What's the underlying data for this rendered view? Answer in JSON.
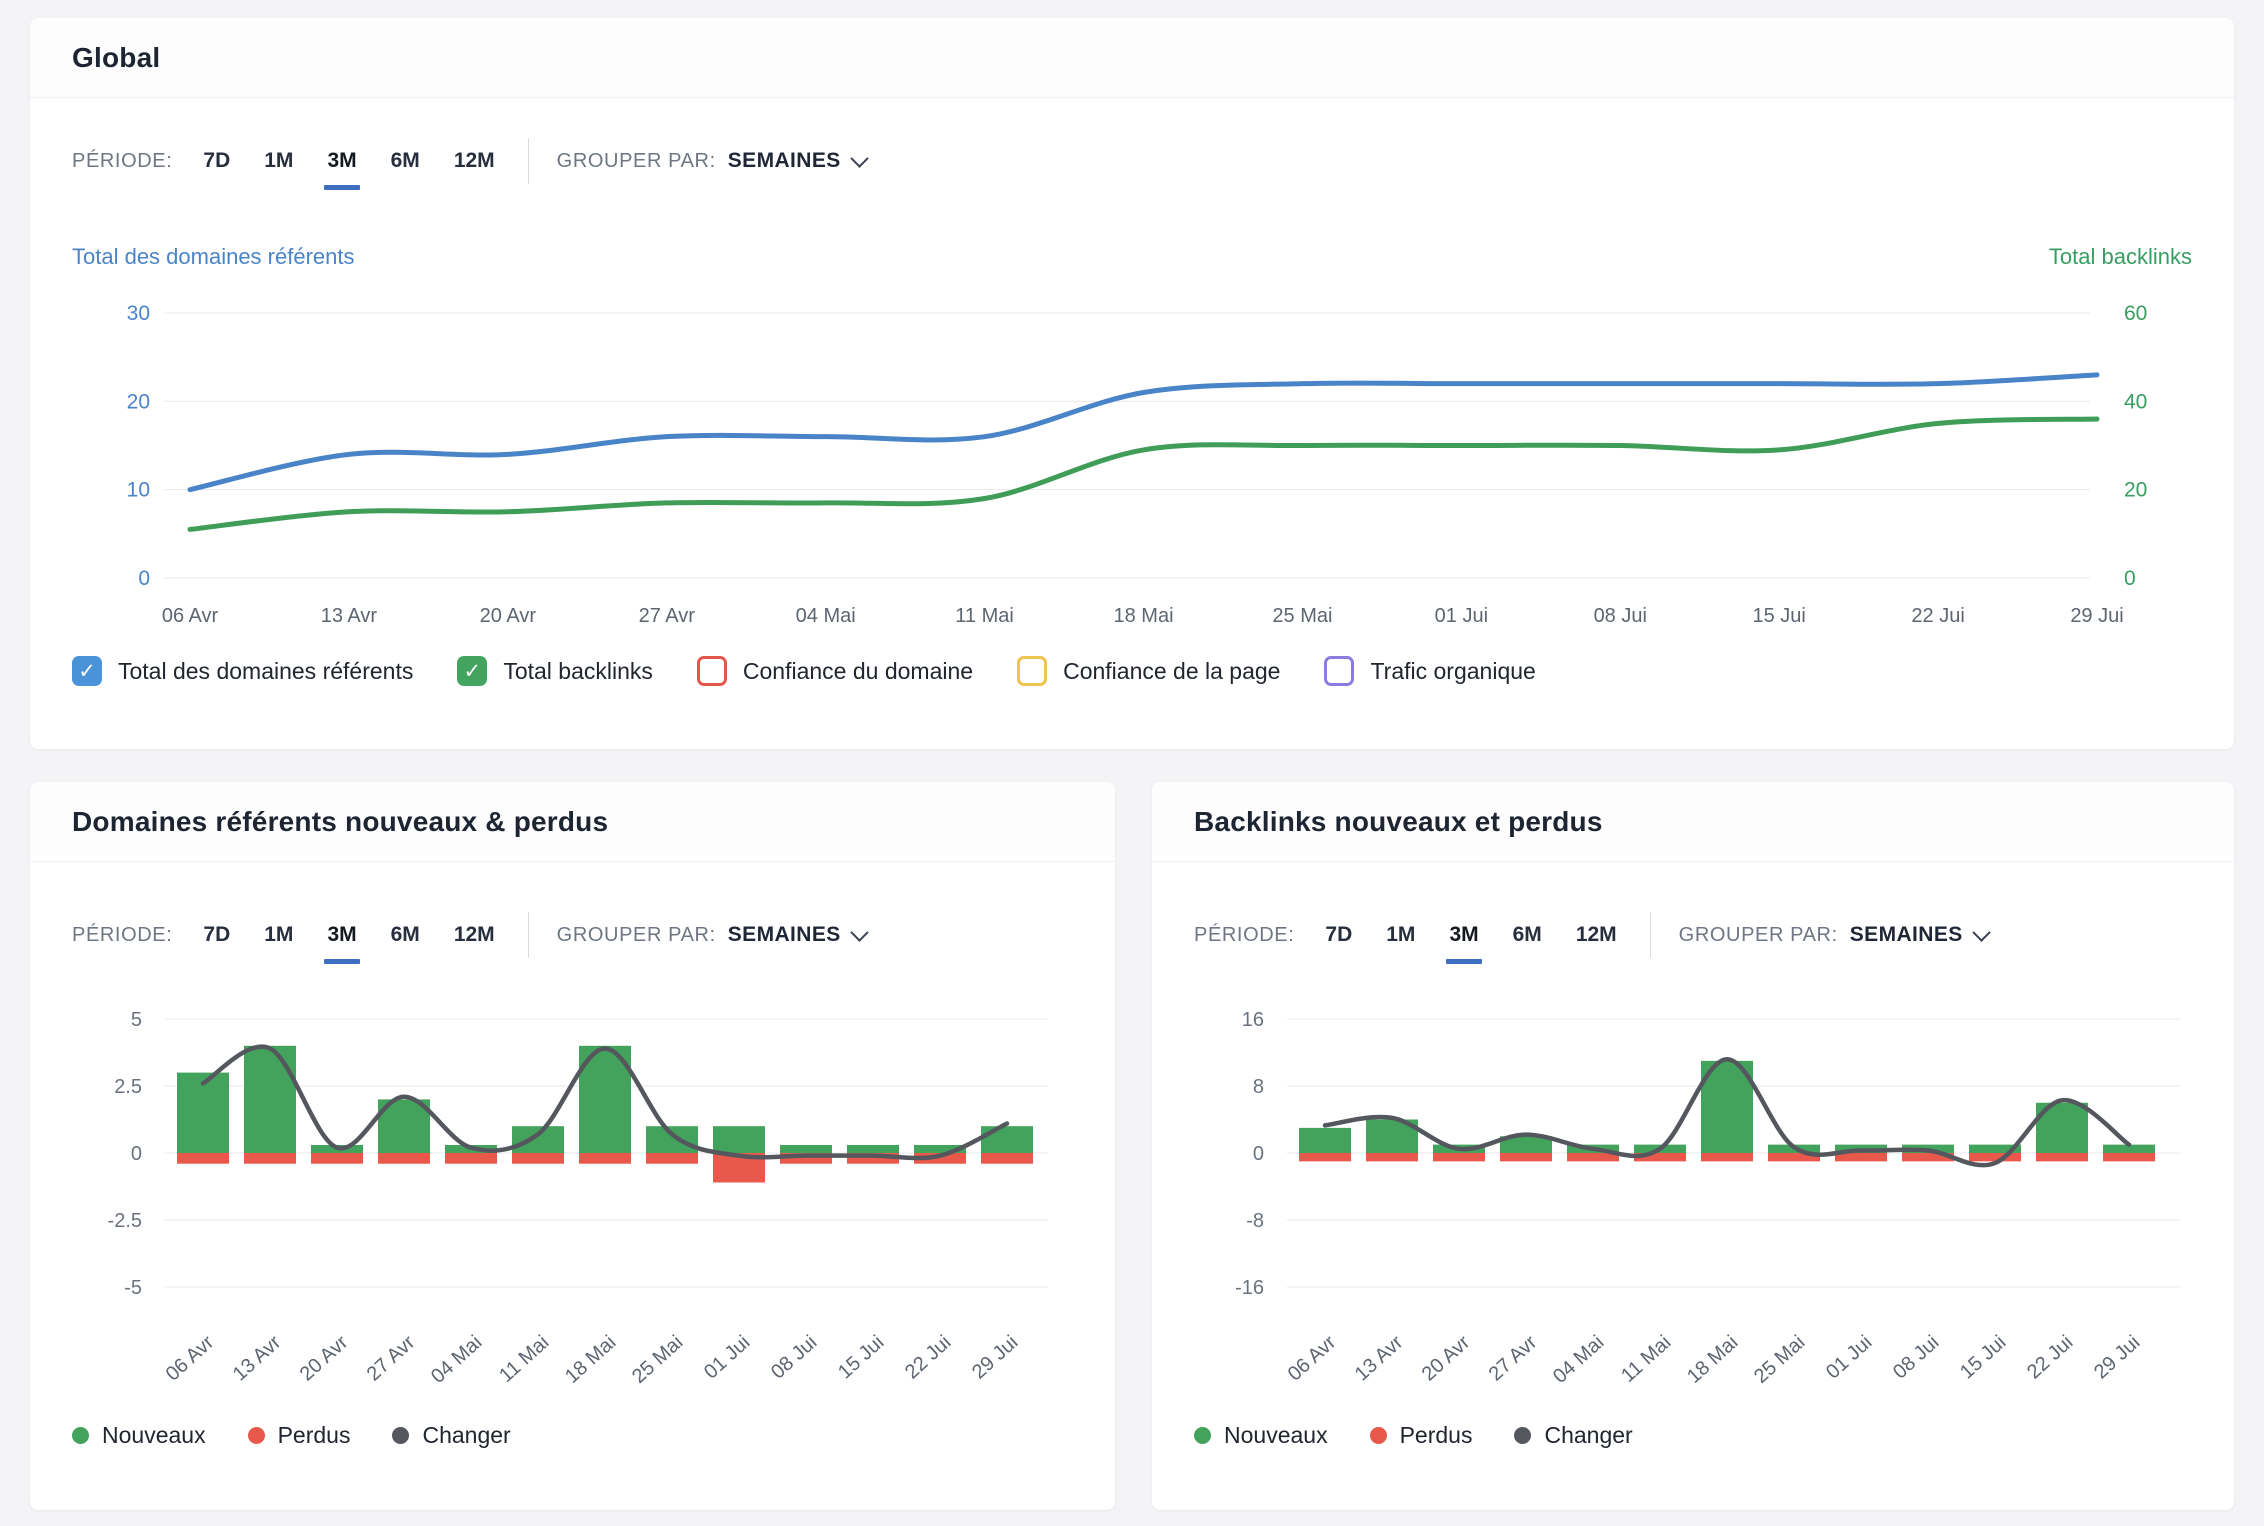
{
  "global_panel": {
    "title": "Global",
    "period_label": "PÉRIODE:",
    "period_options": [
      "7D",
      "1M",
      "3M",
      "6M",
      "12M"
    ],
    "active_period": "3M",
    "group_label": "GROUPER PAR:",
    "group_value": "SEMAINES",
    "left_axis_title": "Total des domaines référents",
    "right_axis_title": "Total backlinks",
    "legend": [
      {
        "label": "Total des domaines référents",
        "checked": true,
        "color": "#4a93d8"
      },
      {
        "label": "Total backlinks",
        "checked": true,
        "color": "#43a45f"
      },
      {
        "label": "Confiance du domaine",
        "checked": false,
        "color": "#e2574b"
      },
      {
        "label": "Confiance de la page",
        "checked": false,
        "color": "#eec44f"
      },
      {
        "label": "Trafic organique",
        "checked": false,
        "color": "#8b7de0"
      }
    ],
    "chart_data": {
      "type": "line",
      "categories": [
        "06 Avr",
        "13 Avr",
        "20 Avr",
        "27 Avr",
        "04 Mai",
        "11 Mai",
        "18 Mai",
        "25 Mai",
        "01 Jui",
        "08 Jui",
        "15 Jui",
        "22 Jui",
        "29 Jui"
      ],
      "left_axis": {
        "title": "Total des domaines référents",
        "ticks": [
          0,
          10,
          20,
          30
        ],
        "range": [
          0,
          30
        ],
        "color": "#4a84c8"
      },
      "right_axis": {
        "title": "Total backlinks",
        "ticks": [
          0,
          20,
          40,
          60
        ],
        "range": [
          0,
          60
        ],
        "color": "#379d60"
      },
      "grid": true,
      "legend_position": "bottom",
      "series": [
        {
          "name": "Total des domaines référents",
          "axis": "left",
          "color": "#4a84c8",
          "values": [
            10,
            14,
            14,
            16,
            16,
            16,
            21,
            22,
            22,
            22,
            22,
            22,
            23
          ]
        },
        {
          "name": "Total backlinks",
          "axis": "right",
          "color": "#3f9d58",
          "values": [
            11,
            15,
            15,
            17,
            17,
            18,
            29,
            30,
            30,
            30,
            29,
            35,
            36
          ]
        }
      ]
    }
  },
  "domains_panel": {
    "title": "Domaines référents nouveaux & perdus",
    "period_label": "PÉRIODE:",
    "period_options": [
      "7D",
      "1M",
      "3M",
      "6M",
      "12M"
    ],
    "active_period": "3M",
    "group_label": "GROUPER PAR:",
    "group_value": "SEMAINES",
    "legend": [
      {
        "label": "Nouveaux",
        "color": "#43a25c"
      },
      {
        "label": "Perdus",
        "color": "#e8594c"
      },
      {
        "label": "Changer",
        "color": "#54575d"
      }
    ],
    "chart_data": {
      "type": "bar",
      "categories": [
        "06 Avr",
        "13 Avr",
        "20 Avr",
        "27 Avr",
        "04 Mai",
        "11 Mai",
        "18 Mai",
        "25 Mai",
        "01 Jui",
        "08 Jui",
        "15 Jui",
        "22 Jui",
        "29 Jui"
      ],
      "y_ticks": [
        5,
        2.5,
        0,
        -2.5,
        -5
      ],
      "ylim": [
        -5,
        5
      ],
      "grid": true,
      "series": [
        {
          "name": "Nouveaux",
          "type": "bar",
          "color": "#43a25c",
          "values": [
            3,
            4,
            0.3,
            2,
            0.3,
            1,
            4,
            1,
            1,
            0.3,
            0.3,
            0.3,
            1
          ]
        },
        {
          "name": "Perdus",
          "type": "bar",
          "color": "#e8594c",
          "values": [
            -0.4,
            -0.4,
            -0.4,
            -0.4,
            -0.4,
            -0.4,
            -0.4,
            -0.4,
            -1.1,
            -0.4,
            -0.4,
            -0.4,
            -0.4
          ]
        },
        {
          "name": "Changer",
          "type": "line",
          "color": "#54575d",
          "values": [
            2.6,
            3.9,
            0.2,
            2.1,
            0.2,
            0.7,
            3.9,
            0.7,
            -0.1,
            -0.1,
            -0.1,
            -0.1,
            1.1
          ]
        }
      ]
    }
  },
  "backlinks_panel": {
    "title": "Backlinks nouveaux et perdus",
    "period_label": "PÉRIODE:",
    "period_options": [
      "7D",
      "1M",
      "3M",
      "6M",
      "12M"
    ],
    "active_period": "3M",
    "group_label": "GROUPER PAR:",
    "group_value": "SEMAINES",
    "legend": [
      {
        "label": "Nouveaux",
        "color": "#43a25c"
      },
      {
        "label": "Perdus",
        "color": "#e8594c"
      },
      {
        "label": "Changer",
        "color": "#54575d"
      }
    ],
    "chart_data": {
      "type": "bar",
      "categories": [
        "06 Avr",
        "13 Avr",
        "20 Avr",
        "27 Avr",
        "04 Mai",
        "11 Mai",
        "18 Mai",
        "25 Mai",
        "01 Jui",
        "08 Jui",
        "15 Jui",
        "22 Jui",
        "29 Jui"
      ],
      "y_ticks": [
        16,
        8,
        0,
        -8,
        -16
      ],
      "ylim": [
        -16,
        16
      ],
      "grid": true,
      "series": [
        {
          "name": "Nouveaux",
          "type": "bar",
          "color": "#43a25c",
          "values": [
            3,
            4,
            1,
            2,
            1,
            1,
            11,
            1,
            1,
            1,
            1,
            6,
            1
          ]
        },
        {
          "name": "Perdus",
          "type": "bar",
          "color": "#e8594c",
          "values": [
            -1,
            -1,
            -1,
            -1,
            -1,
            -1,
            -1,
            -1,
            -1,
            -1,
            -1,
            -1,
            -1
          ]
        },
        {
          "name": "Changer",
          "type": "line",
          "color": "#54575d",
          "values": [
            3.3,
            4.2,
            0.5,
            2.2,
            0.5,
            0.5,
            11.2,
            0.7,
            0.3,
            0.3,
            -1.2,
            6.3,
            1
          ]
        }
      ]
    }
  }
}
